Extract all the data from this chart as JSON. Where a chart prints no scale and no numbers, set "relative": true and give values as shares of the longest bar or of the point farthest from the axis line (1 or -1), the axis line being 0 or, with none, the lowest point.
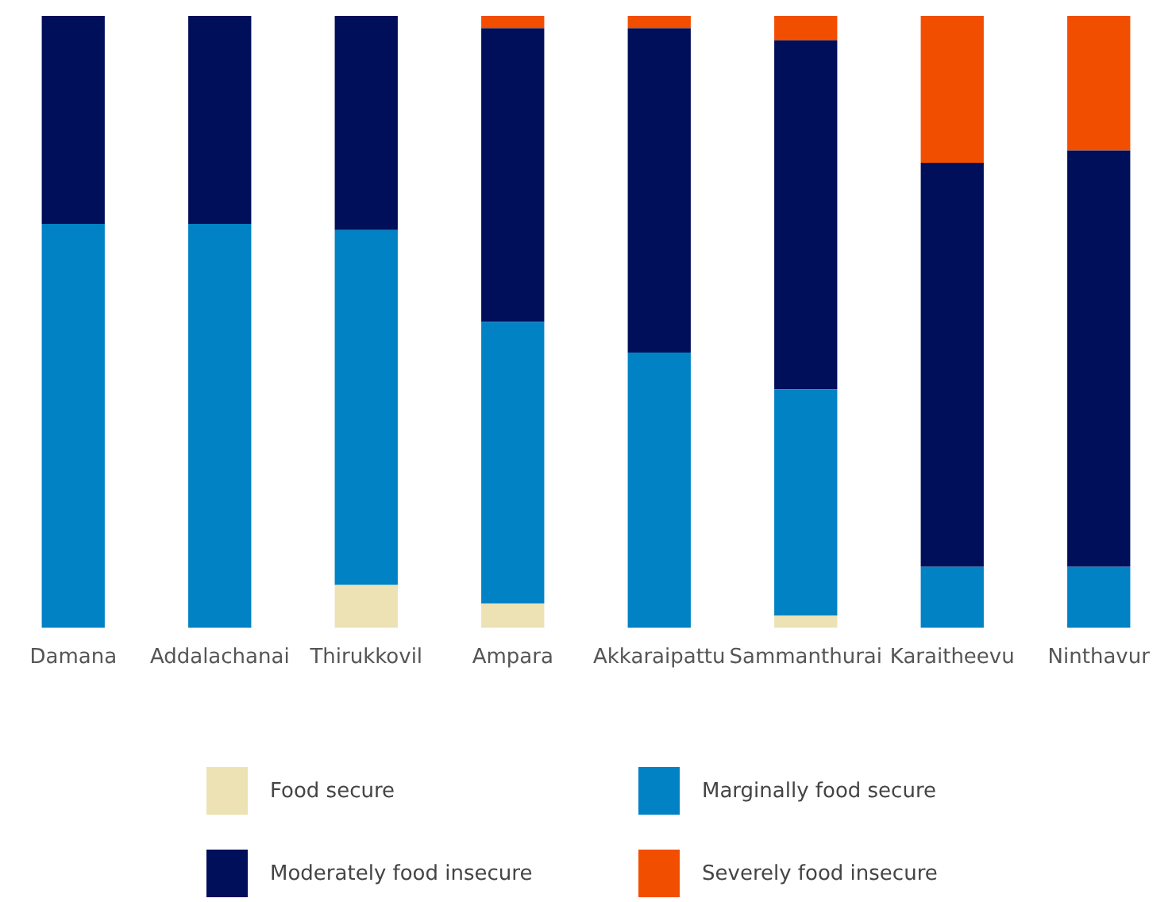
{
  "chart_data": {
    "type": "bar",
    "stacked": true,
    "relative": true,
    "legend": "bottom",
    "categories": [
      "Damana",
      "Addalachanai",
      "Thirukkovil",
      "Ampara",
      "Akkaraipattu",
      "Sammanthurai",
      "Karaitheevu",
      "Ninthavur"
    ],
    "series": [
      {
        "name": "Food secure",
        "color": "#ece2b4",
        "values": [
          0,
          0,
          0.07,
          0.04,
          0,
          0.02,
          0,
          0
        ]
      },
      {
        "name": "Marginally food secure",
        "color": "#0082c4",
        "values": [
          0.66,
          0.66,
          0.58,
          0.46,
          0.45,
          0.37,
          0.1,
          0.1
        ]
      },
      {
        "name": "Moderately food insecure",
        "color": "#000f5a",
        "values": [
          0.34,
          0.34,
          0.35,
          0.48,
          0.53,
          0.57,
          0.66,
          0.68
        ]
      },
      {
        "name": "Severely food insecure",
        "color": "#f24e00",
        "values": [
          0,
          0,
          0,
          0.02,
          0.02,
          0.04,
          0.24,
          0.22
        ]
      }
    ]
  }
}
